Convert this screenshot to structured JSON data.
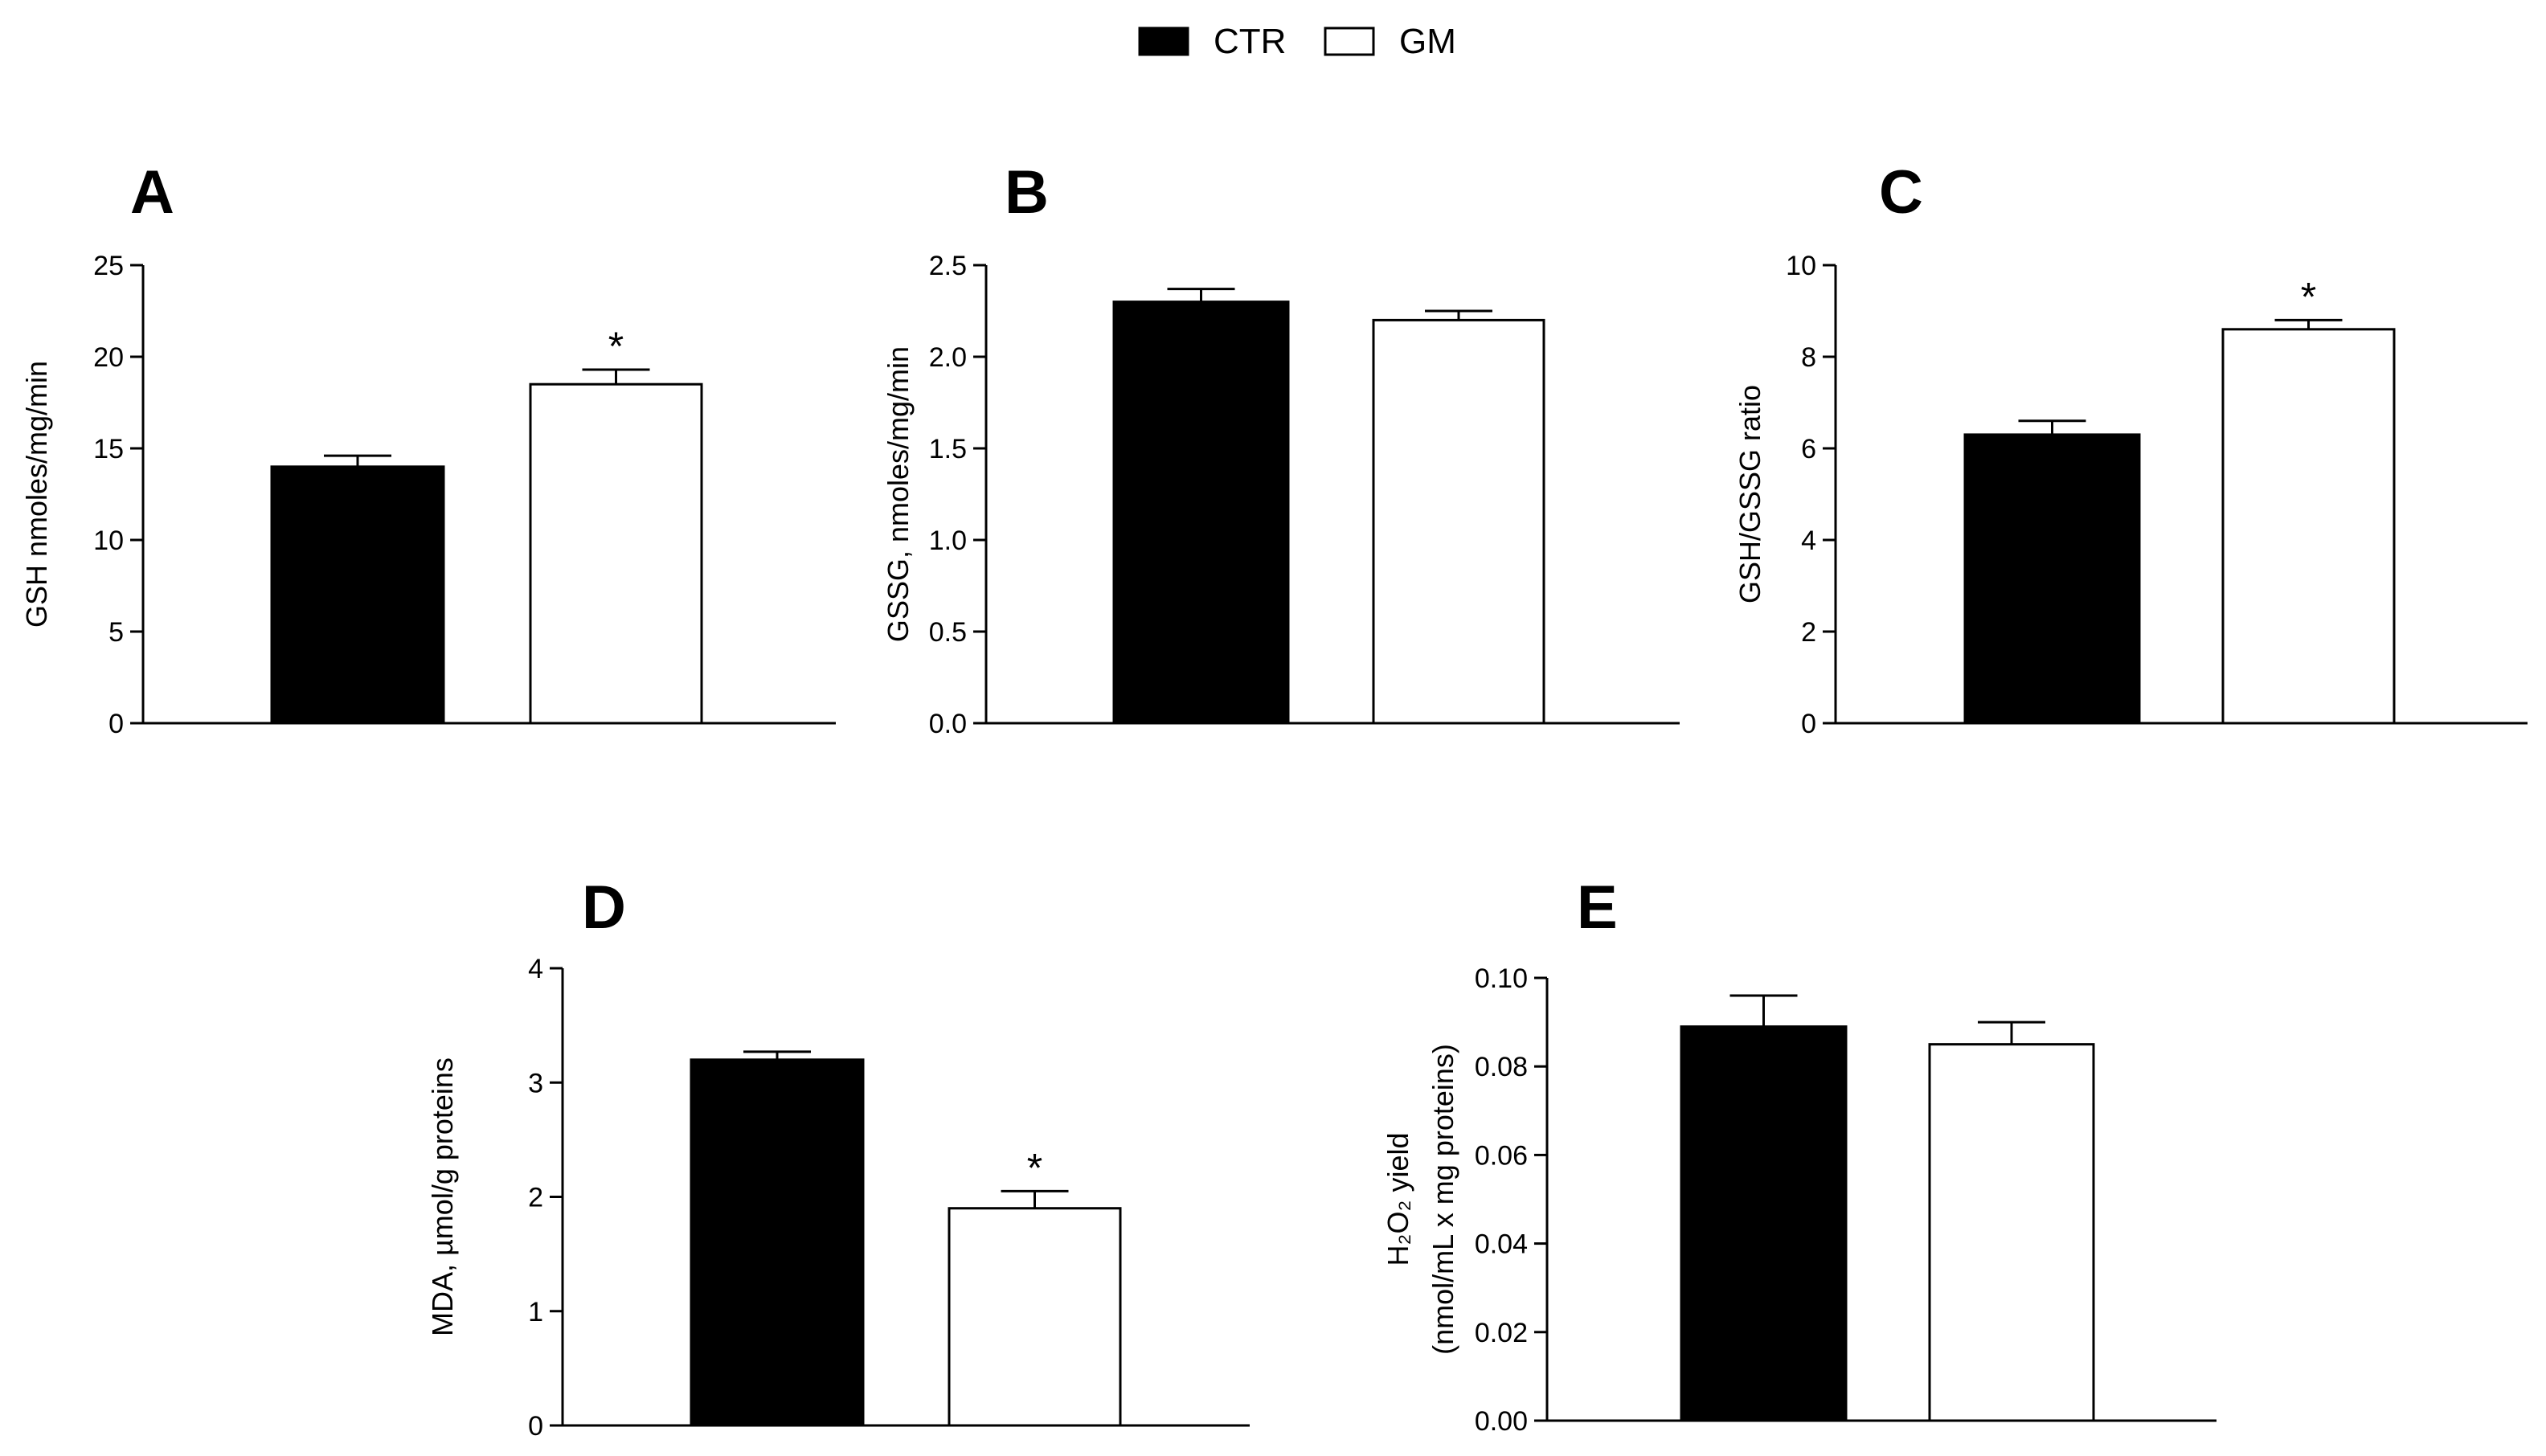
{
  "legend": [
    {
      "label": "CTR",
      "fill": "#000000"
    },
    {
      "label": "GM",
      "fill": "#ffffff"
    }
  ],
  "chart_data": [
    {
      "panel": "A",
      "type": "bar",
      "categories": [
        "CTR",
        "GM"
      ],
      "values": [
        14.0,
        18.5
      ],
      "errors": [
        0.6,
        0.8
      ],
      "significance": [
        "",
        "*"
      ],
      "ylabel": "GSH nmoles/mg/min",
      "ylim": [
        0,
        25
      ],
      "yticks": [
        "0",
        "5",
        "10",
        "15",
        "20",
        "25"
      ]
    },
    {
      "panel": "B",
      "type": "bar",
      "categories": [
        "CTR",
        "GM"
      ],
      "values": [
        2.3,
        2.2
      ],
      "errors": [
        0.07,
        0.05
      ],
      "significance": [
        "",
        ""
      ],
      "ylabel": "GSSG, nmoles/mg/min",
      "ylim": [
        0,
        2.5
      ],
      "yticks": [
        "0.0",
        "0.5",
        "1.0",
        "1.5",
        "2.0",
        "2.5"
      ]
    },
    {
      "panel": "C",
      "type": "bar",
      "categories": [
        "CTR",
        "GM"
      ],
      "values": [
        6.3,
        8.6
      ],
      "errors": [
        0.3,
        0.2
      ],
      "significance": [
        "",
        "*"
      ],
      "ylabel": "GSH/GSSG ratio",
      "ylim": [
        0,
        10
      ],
      "yticks": [
        "0",
        "2",
        "4",
        "6",
        "8",
        "10"
      ]
    },
    {
      "panel": "D",
      "type": "bar",
      "categories": [
        "CTR",
        "GM"
      ],
      "values": [
        3.2,
        1.9
      ],
      "errors": [
        0.07,
        0.15
      ],
      "significance": [
        "",
        "*"
      ],
      "ylabel": "MDA, µmol/g proteins",
      "ylim": [
        0,
        4
      ],
      "yticks": [
        "0",
        "1",
        "2",
        "3",
        "4"
      ]
    },
    {
      "panel": "E",
      "type": "bar",
      "categories": [
        "CTR",
        "GM"
      ],
      "values": [
        0.089,
        0.085
      ],
      "errors": [
        0.007,
        0.005
      ],
      "significance": [
        "",
        ""
      ],
      "ylabel_lines": [
        "H₂O₂ yield",
        "(nmol/mL x mg proteins)"
      ],
      "ylim": [
        0,
        0.1
      ],
      "yticks": [
        "0.00",
        "0.02",
        "0.04",
        "0.06",
        "0.08",
        "0.10"
      ]
    }
  ]
}
